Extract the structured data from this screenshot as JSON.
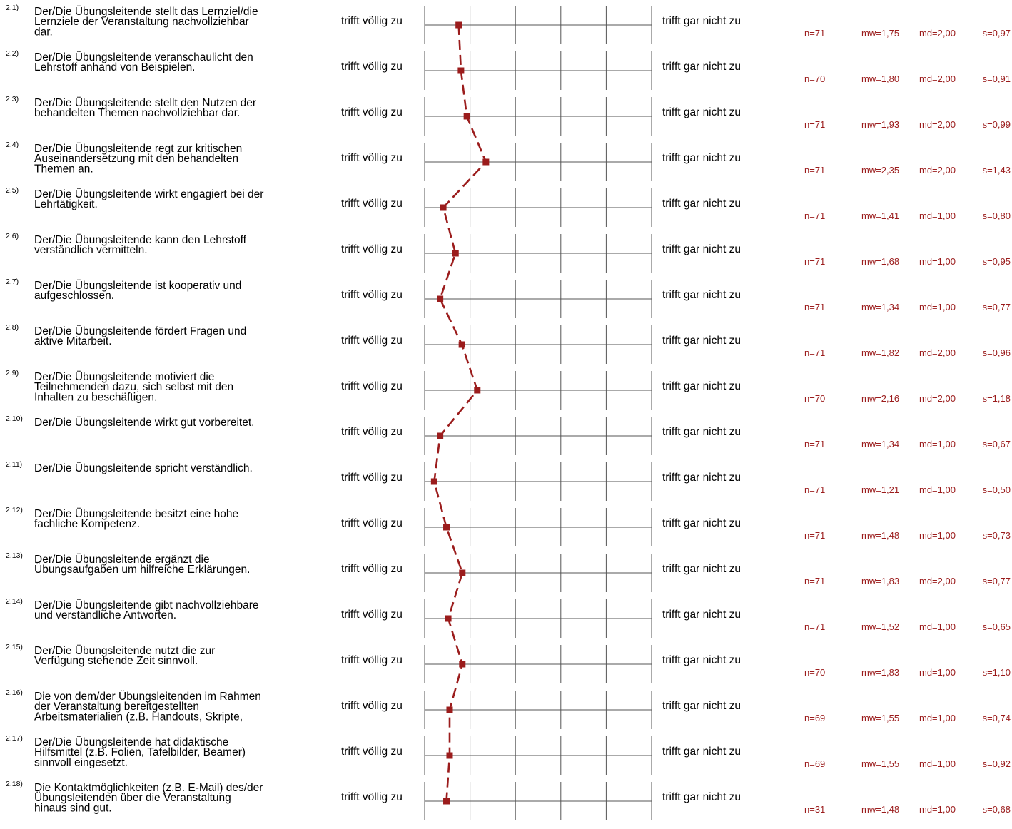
{
  "chart_data": {
    "type": "line",
    "scale_min": 1,
    "scale_max": 6,
    "left_pole": "trifft völlig zu",
    "right_pole": "trifft gar nicht zu",
    "colors": {
      "series": "#9b1c1c",
      "grid": "#555555"
    },
    "items": [
      {
        "num": "2.1)",
        "text": [
          "Der/Die Übungsleitende stellt das Lernziel/die",
          "Lernziele der Veranstaltung nachvollziehbar",
          "dar."
        ],
        "mw": 1.75,
        "n": "n=71",
        "mw_label": "mw=1,75",
        "md_label": "md=2,00",
        "s_label": "s=0,97"
      },
      {
        "num": "2.2)",
        "text": [
          "Der/Die Übungsleitende veranschaulicht den",
          "Lehrstoff anhand von Beispielen."
        ],
        "mw": 1.8,
        "n": "n=70",
        "mw_label": "mw=1,80",
        "md_label": "md=2,00",
        "s_label": "s=0,91"
      },
      {
        "num": "2.3)",
        "text": [
          "Der/Die Übungsleitende stellt den Nutzen der",
          "behandelten Themen nachvollziehbar dar."
        ],
        "mw": 1.93,
        "n": "n=71",
        "mw_label": "mw=1,93",
        "md_label": "md=2,00",
        "s_label": "s=0,99"
      },
      {
        "num": "2.4)",
        "text": [
          "Der/Die Übungsleitende regt zur kritischen",
          "Auseinandersetzung mit den behandelten",
          "Themen an."
        ],
        "mw": 2.35,
        "n": "n=71",
        "mw_label": "mw=2,35",
        "md_label": "md=2,00",
        "s_label": "s=1,43"
      },
      {
        "num": "2.5)",
        "text": [
          "Der/Die Übungsleitende wirkt engagiert bei der",
          "Lehrtätigkeit."
        ],
        "mw": 1.41,
        "n": "n=71",
        "mw_label": "mw=1,41",
        "md_label": "md=1,00",
        "s_label": "s=0,80"
      },
      {
        "num": "2.6)",
        "text": [
          "Der/Die Übungsleitende kann den Lehrstoff",
          "verständlich vermitteln."
        ],
        "mw": 1.68,
        "n": "n=71",
        "mw_label": "mw=1,68",
        "md_label": "md=1,00",
        "s_label": "s=0,95"
      },
      {
        "num": "2.7)",
        "text": [
          "Der/Die Übungsleitende ist kooperativ und",
          "aufgeschlossen."
        ],
        "mw": 1.34,
        "n": "n=71",
        "mw_label": "mw=1,34",
        "md_label": "md=1,00",
        "s_label": "s=0,77"
      },
      {
        "num": "2.8)",
        "text": [
          "Der/Die Übungsleitende fördert Fragen und",
          "aktive Mitarbeit."
        ],
        "mw": 1.82,
        "n": "n=71",
        "mw_label": "mw=1,82",
        "md_label": "md=2,00",
        "s_label": "s=0,96"
      },
      {
        "num": "2.9)",
        "text": [
          "Der/Die Übungsleitende motiviert die",
          "Teilnehmenden dazu, sich selbst mit den",
          "Inhalten zu beschäftigen."
        ],
        "mw": 2.16,
        "n": "n=70",
        "mw_label": "mw=2,16",
        "md_label": "md=2,00",
        "s_label": "s=1,18"
      },
      {
        "num": "2.10)",
        "text": [
          "Der/Die Übungsleitende wirkt gut vorbereitet."
        ],
        "mw": 1.34,
        "n": "n=71",
        "mw_label": "mw=1,34",
        "md_label": "md=1,00",
        "s_label": "s=0,67"
      },
      {
        "num": "2.11)",
        "text": [
          "Der/Die Übungsleitende spricht verständlich."
        ],
        "mw": 1.21,
        "n": "n=71",
        "mw_label": "mw=1,21",
        "md_label": "md=1,00",
        "s_label": "s=0,50"
      },
      {
        "num": "2.12)",
        "text": [
          "Der/Die Übungsleitende besitzt eine hohe",
          "fachliche Kompetenz."
        ],
        "mw": 1.48,
        "n": "n=71",
        "mw_label": "mw=1,48",
        "md_label": "md=1,00",
        "s_label": "s=0,73"
      },
      {
        "num": "2.13)",
        "text": [
          "Der/Die Übungsleitende ergänzt die",
          "Übungsaufgaben um hilfreiche Erklärungen."
        ],
        "mw": 1.83,
        "n": "n=71",
        "mw_label": "mw=1,83",
        "md_label": "md=2,00",
        "s_label": "s=0,77"
      },
      {
        "num": "2.14)",
        "text": [
          "Der/Die Übungsleitende gibt nachvollziehbare",
          "und verständliche Antworten."
        ],
        "mw": 1.52,
        "n": "n=71",
        "mw_label": "mw=1,52",
        "md_label": "md=1,00",
        "s_label": "s=0,65"
      },
      {
        "num": "2.15)",
        "text": [
          "Der/Die Übungsleitende nutzt die zur",
          "Verfügung stehende Zeit sinnvoll."
        ],
        "mw": 1.83,
        "n": "n=70",
        "mw_label": "mw=1,83",
        "md_label": "md=1,00",
        "s_label": "s=1,10"
      },
      {
        "num": "2.16)",
        "text": [
          "Die von dem/der Übungsleitenden im Rahmen",
          "der Veranstaltung bereitgestellten",
          "Arbeitsmaterialien (z.B. Handouts, Skripte,"
        ],
        "mw": 1.55,
        "n": "n=69",
        "mw_label": "mw=1,55",
        "md_label": "md=1,00",
        "s_label": "s=0,74"
      },
      {
        "num": "2.17)",
        "text": [
          "Der/Die Übungsleitende hat didaktische",
          "Hilfsmittel (z.B. Folien, Tafelbilder, Beamer)",
          "sinnvoll eingesetzt."
        ],
        "mw": 1.55,
        "n": "n=69",
        "mw_label": "mw=1,55",
        "md_label": "md=1,00",
        "s_label": "s=0,92"
      },
      {
        "num": "2.18)",
        "text": [
          "Die Kontaktmöglichkeiten (z.B. E-Mail) des/der",
          "Übungsleitenden über die Veranstaltung",
          "hinaus sind gut."
        ],
        "mw": 1.48,
        "n": "n=31",
        "mw_label": "mw=1,48",
        "md_label": "md=1,00",
        "s_label": "s=0,68"
      }
    ]
  }
}
